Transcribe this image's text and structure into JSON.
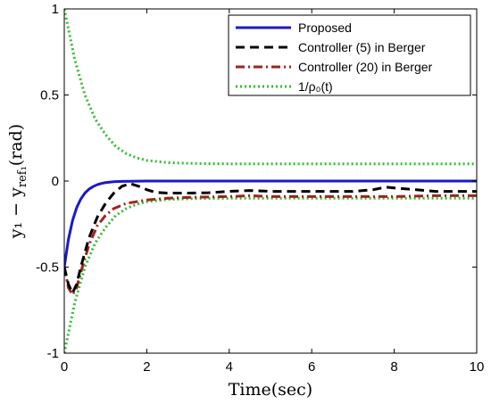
{
  "chart_data": {
    "type": "line",
    "xlabel": "Time(sec)",
    "ylabel": "y₁ − y_ref₁(rad)",
    "ylabel_main": "y₁ − y",
    "ylabel_sub": "ref₁",
    "ylabel_tail": "(rad)",
    "xlim": [
      0,
      10
    ],
    "ylim": [
      -1,
      1
    ],
    "xticks": [
      0,
      2,
      4,
      6,
      8,
      10
    ],
    "yticks": [
      -1,
      -0.5,
      0,
      0.5,
      1
    ],
    "xtick_labels": [
      "0",
      "2",
      "4",
      "6",
      "8",
      "10"
    ],
    "ytick_labels": [
      "-1",
      "-0.5",
      "0",
      "0.5",
      "1"
    ],
    "grid": false,
    "legend_position": "top-right",
    "series": [
      {
        "name": "Proposed",
        "color": "#1a1ac8",
        "dash": "solid",
        "x": [
          0,
          0.1,
          0.2,
          0.3,
          0.4,
          0.5,
          0.6,
          0.7,
          0.8,
          0.9,
          1.0,
          1.2,
          1.4,
          1.6,
          2.0,
          3.0,
          4.0,
          5.0,
          6.0,
          7.0,
          8.0,
          9.0,
          10.0
        ],
        "y": [
          -0.5,
          -0.34,
          -0.23,
          -0.155,
          -0.105,
          -0.07,
          -0.047,
          -0.032,
          -0.021,
          -0.014,
          -0.009,
          -0.004,
          -0.002,
          -0.001,
          0,
          0,
          0,
          0,
          0,
          0,
          0,
          0,
          0
        ]
      },
      {
        "name": "Controller (5) in Berger",
        "color": "#000000",
        "dash": "dashed",
        "x": [
          0,
          0.1,
          0.2,
          0.3,
          0.4,
          0.6,
          0.8,
          1.0,
          1.2,
          1.4,
          1.6,
          1.8,
          2.0,
          2.2,
          2.5,
          3.0,
          3.5,
          4.0,
          4.5,
          5.0,
          6.0,
          7.0,
          7.5,
          7.8,
          8.0,
          8.5,
          9.0,
          10.0
        ],
        "y": [
          -0.5,
          -0.6,
          -0.65,
          -0.6,
          -0.5,
          -0.33,
          -0.21,
          -0.13,
          -0.07,
          -0.03,
          -0.015,
          -0.03,
          -0.05,
          -0.065,
          -0.07,
          -0.07,
          -0.068,
          -0.06,
          -0.055,
          -0.06,
          -0.06,
          -0.06,
          -0.05,
          -0.035,
          -0.04,
          -0.05,
          -0.06,
          -0.06
        ]
      },
      {
        "name": "Controller (20) in Berger",
        "color": "#a0221e",
        "dash": "dashdot",
        "x": [
          0,
          0.1,
          0.2,
          0.3,
          0.4,
          0.6,
          0.8,
          1.0,
          1.2,
          1.5,
          2.0,
          2.5,
          3.0,
          4.0,
          4.5,
          5.0,
          6.0,
          7.0,
          8.0,
          9.0,
          10.0
        ],
        "y": [
          -0.5,
          -0.62,
          -0.66,
          -0.62,
          -0.53,
          -0.37,
          -0.26,
          -0.2,
          -0.16,
          -0.13,
          -0.11,
          -0.1,
          -0.095,
          -0.09,
          -0.085,
          -0.09,
          -0.09,
          -0.09,
          -0.09,
          -0.085,
          -0.085
        ]
      },
      {
        "name": "1/ρ₀(t)",
        "color": "#2fbf2f",
        "dash": "dotted",
        "x": [
          0,
          0.25,
          0.5,
          0.75,
          1.0,
          1.25,
          1.5,
          1.75,
          2.0,
          2.5,
          3.0,
          3.5,
          4.0,
          5.0,
          6.0,
          7.0,
          8.0,
          9.0,
          10.0
        ],
        "y": [
          1.0,
          0.71,
          0.5,
          0.36,
          0.27,
          0.2,
          0.16,
          0.135,
          0.12,
          0.107,
          0.103,
          0.101,
          0.1,
          0.1,
          0.1,
          0.1,
          0.1,
          0.1,
          0.1
        ],
        "mirrored": true
      }
    ],
    "legend_labels": [
      "Proposed",
      "Controller (5) in Berger",
      "Controller (20) in Berger",
      "1/ρ₀(t)"
    ]
  }
}
